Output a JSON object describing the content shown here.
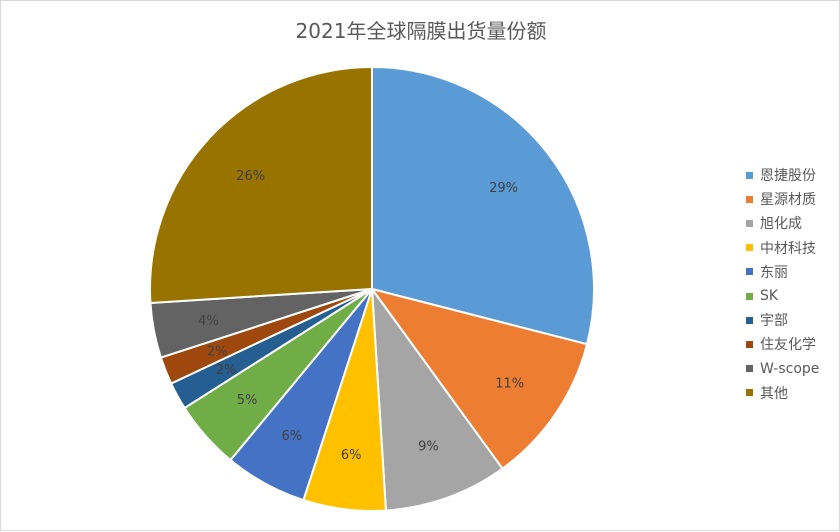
{
  "chart_data": {
    "type": "pie",
    "title": "2021年全球隔膜出货量份额",
    "categories": [
      "恩捷股份",
      "星源材质",
      "旭化成",
      "中材科技",
      "东丽",
      "SK",
      "宇部",
      "住友化学",
      "W-scope",
      "其他"
    ],
    "values": [
      29,
      11,
      9,
      6,
      6,
      5,
      2,
      2,
      4,
      26
    ],
    "data_labels": [
      "29%",
      "11%",
      "9%",
      "6%",
      "6%",
      "5%",
      "2%",
      "2%",
      "4%",
      "26%"
    ],
    "colors": [
      "#5B9BD5",
      "#ED7D31",
      "#A5A5A5",
      "#FFC000",
      "#4472C4",
      "#70AD47",
      "#255E91",
      "#9E480E",
      "#636363",
      "#997300"
    ],
    "legend_position": "right"
  }
}
